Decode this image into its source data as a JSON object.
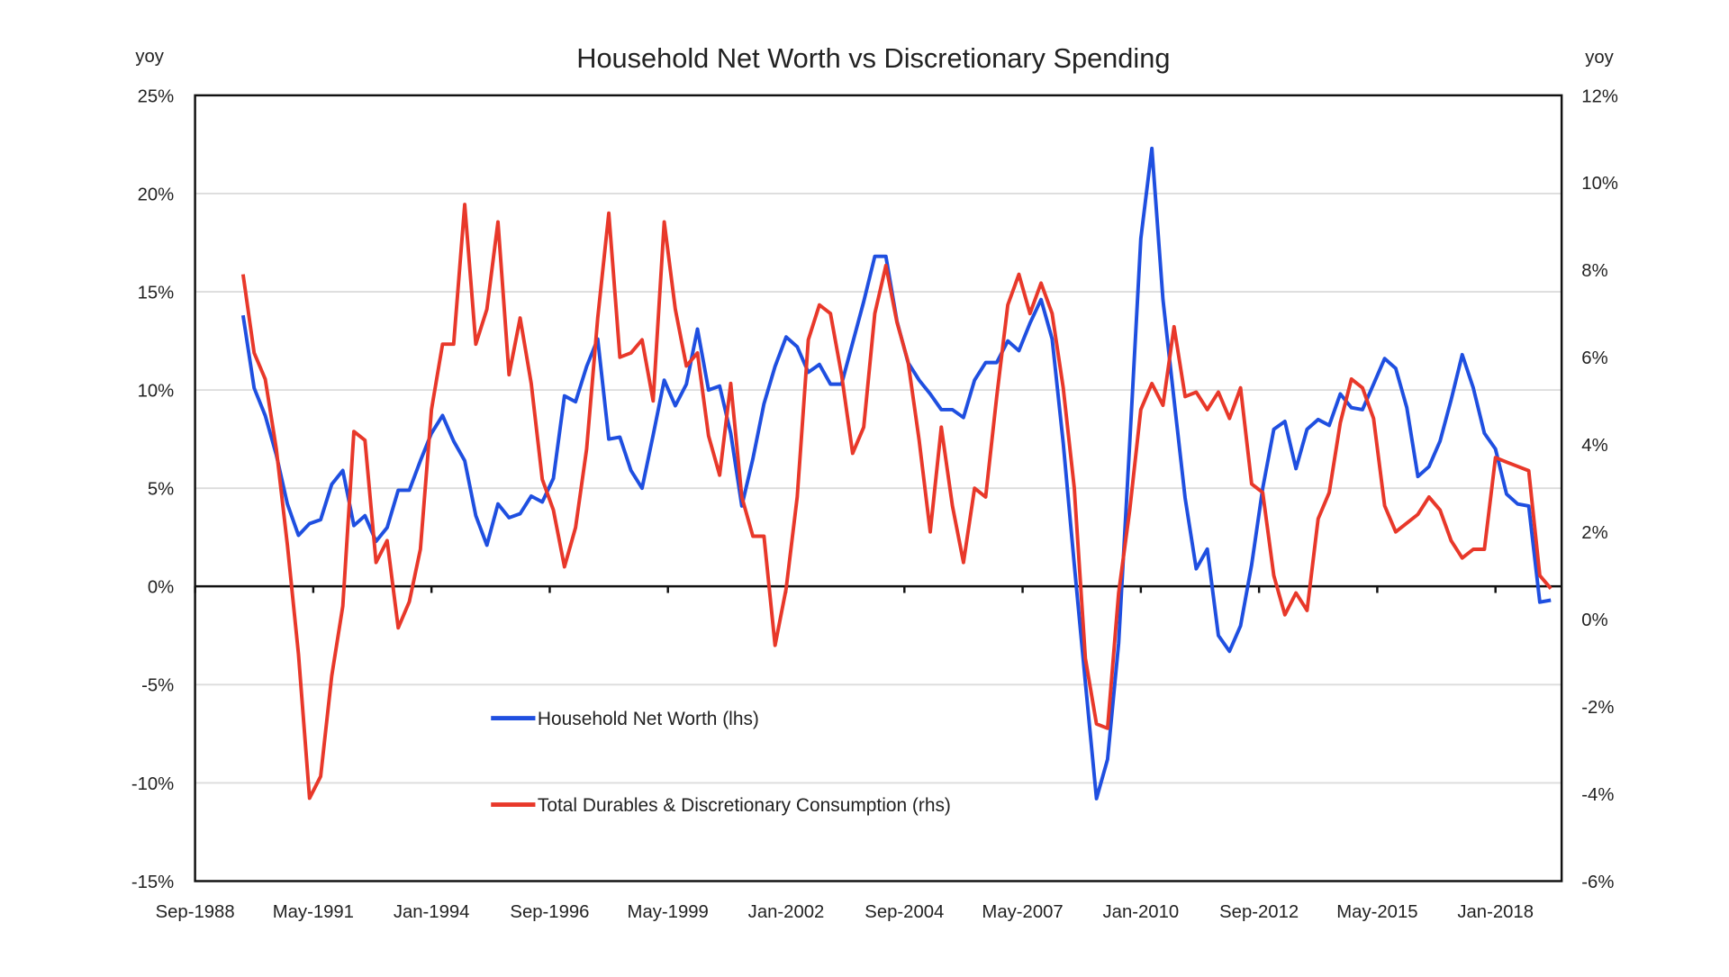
{
  "chart_data": {
    "type": "line",
    "title": "Household Net Worth vs Discretionary Spending",
    "left_axis": {
      "unit_label": "yoy",
      "range": [
        -15,
        25
      ],
      "ticks": [
        25,
        20,
        15,
        10,
        5,
        0,
        -5,
        -10,
        -15
      ],
      "tick_labels": [
        "25%",
        "20%",
        "15%",
        "10%",
        "5%",
        "0%",
        "-5%",
        "-10%",
        "-15%"
      ]
    },
    "right_axis": {
      "unit_label": "yoy",
      "range": [
        -6,
        12
      ],
      "ticks": [
        12,
        10,
        8,
        6,
        4,
        2,
        0,
        -2,
        -4,
        -6
      ],
      "tick_labels": [
        "12%",
        "10%",
        "8%",
        "6%",
        "4%",
        "2%",
        "0%",
        "-2%",
        "-4%",
        "-6%"
      ]
    },
    "x_axis": {
      "range": [
        1988.667,
        2019.5
      ],
      "ticks": [
        1988.667,
        1991.333,
        1994.0,
        1996.667,
        1999.333,
        2002.0,
        2004.667,
        2007.333,
        2010.0,
        2012.667,
        2015.333,
        2018.0
      ],
      "tick_labels": [
        "Sep-1988",
        "May-1991",
        "Jan-1994",
        "Sep-1996",
        "May-1999",
        "Jan-2002",
        "Sep-2004",
        "May-2007",
        "Jan-2010",
        "Sep-2012",
        "May-2015",
        "Jan-2018"
      ]
    },
    "grid": "horizontal",
    "legend_position": "lower-left",
    "x_start": 1989.75,
    "x_step": 0.25,
    "series": [
      {
        "name": "Household Net Worth (lhs)",
        "axis": "left",
        "color": "#1f4fe0",
        "values": [
          13.8,
          10.1,
          8.7,
          6.7,
          4.2,
          2.6,
          3.2,
          3.4,
          5.2,
          5.9,
          3.1,
          3.6,
          2.3,
          3.0,
          4.9,
          4.9,
          6.4,
          7.8,
          8.7,
          7.4,
          6.4,
          3.6,
          2.1,
          4.2,
          3.5,
          3.7,
          4.6,
          4.3,
          5.5,
          9.7,
          9.4,
          11.2,
          12.6,
          7.5,
          7.6,
          5.9,
          5.0,
          7.7,
          10.5,
          9.2,
          10.3,
          13.1,
          10.0,
          10.2,
          7.8,
          4.1,
          6.5,
          9.3,
          11.2,
          12.7,
          12.2,
          10.9,
          11.3,
          10.3,
          10.3,
          12.4,
          14.5,
          16.8,
          16.8,
          13.5,
          11.4,
          10.5,
          9.8,
          9.0,
          9.0,
          8.6,
          10.5,
          11.4,
          11.4,
          12.5,
          12.0,
          13.4,
          14.6,
          12.6,
          7.3,
          1.1,
          -4.9,
          -10.8,
          -8.8,
          -2.9,
          7.3,
          17.7,
          22.3,
          14.6,
          9.5,
          4.5,
          0.9,
          1.9,
          -2.5,
          -3.3,
          -2.0,
          1.1,
          5.0,
          8.0,
          8.4,
          6.0,
          8.0,
          8.5,
          8.2,
          9.8,
          9.1,
          9.0,
          10.3,
          11.6,
          11.1,
          9.1,
          5.6,
          6.1,
          7.4,
          9.5,
          11.8,
          10.1,
          7.8,
          7.0,
          4.7,
          4.2,
          4.1,
          -0.8,
          -0.7
        ]
      },
      {
        "name": "Total Durables & Discretionary Consumption (rhs)",
        "axis": "right",
        "color": "#e8382a",
        "values": [
          7.9,
          6.1,
          5.5,
          3.9,
          1.7,
          -0.8,
          -4.1,
          -3.6,
          -1.3,
          0.3,
          4.3,
          4.1,
          1.3,
          1.8,
          -0.2,
          0.4,
          1.6,
          4.8,
          6.3,
          6.3,
          9.5,
          6.3,
          7.1,
          9.1,
          5.6,
          6.9,
          5.4,
          3.2,
          2.5,
          1.2,
          2.1,
          3.9,
          6.9,
          9.3,
          6.0,
          6.1,
          6.4,
          5.0,
          9.1,
          7.1,
          5.8,
          6.1,
          4.2,
          3.3,
          5.4,
          2.8,
          1.9,
          1.9,
          -0.6,
          0.7,
          2.8,
          6.4,
          7.2,
          7.0,
          5.6,
          3.8,
          4.4,
          7.0,
          8.1,
          6.8,
          5.9,
          4.1,
          2.0,
          4.4,
          2.6,
          1.3,
          3.0,
          2.8,
          5.1,
          7.2,
          7.9,
          7.0,
          7.7,
          7.0,
          5.3,
          3.0,
          -0.9,
          -2.4,
          -2.5,
          0.6,
          2.5,
          4.8,
          5.4,
          4.9,
          6.7,
          5.1,
          5.2,
          4.8,
          5.2,
          4.6,
          5.3,
          3.1,
          2.9,
          1.0,
          0.1,
          0.6,
          0.2,
          2.3,
          2.9,
          4.5,
          5.5,
          5.3,
          4.6,
          2.6,
          2.0,
          2.2,
          2.4,
          2.8,
          2.5,
          1.8,
          1.4,
          1.6,
          1.6,
          3.7,
          3.6,
          3.5,
          3.4,
          1.0,
          0.7
        ]
      }
    ]
  }
}
